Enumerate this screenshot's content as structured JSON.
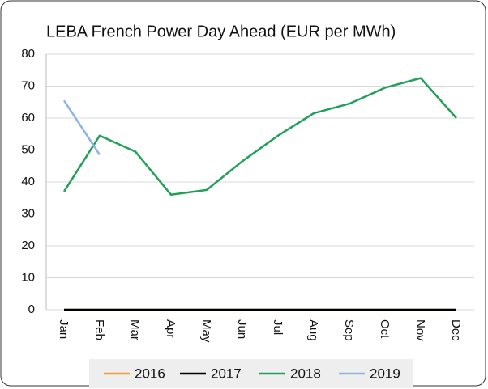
{
  "chart_data": {
    "type": "line",
    "title": "LEBA French Power Day Ahead (EUR per MWh)",
    "categories": [
      "Jan",
      "Feb",
      "Mar",
      "Apr",
      "May",
      "Jun",
      "Jul",
      "Aug",
      "Sep",
      "Oct",
      "Nov",
      "Dec"
    ],
    "series": [
      {
        "name": "2016",
        "color": "#f5a030",
        "values": [
          0,
          0,
          0,
          0,
          0,
          0,
          0,
          0,
          0,
          0,
          0,
          0
        ]
      },
      {
        "name": "2017",
        "color": "#000000",
        "values": [
          0,
          0,
          0,
          0,
          0,
          0,
          0,
          0,
          0,
          0,
          0,
          0
        ]
      },
      {
        "name": "2018",
        "color": "#22a05a",
        "values": [
          37,
          54.5,
          49.5,
          36,
          37.5,
          46.5,
          54.5,
          61.5,
          64.5,
          69.5,
          72.5,
          60
        ]
      },
      {
        "name": "2019",
        "color": "#8fb4e3",
        "values": [
          65.5,
          48.5,
          null,
          null,
          null,
          null,
          null,
          null,
          null,
          null,
          null,
          null
        ]
      }
    ],
    "ylim": [
      0,
      80
    ],
    "yticks": [
      0,
      10,
      20,
      30,
      40,
      50,
      60,
      70,
      80
    ],
    "grid": true,
    "legend": "bottom"
  }
}
